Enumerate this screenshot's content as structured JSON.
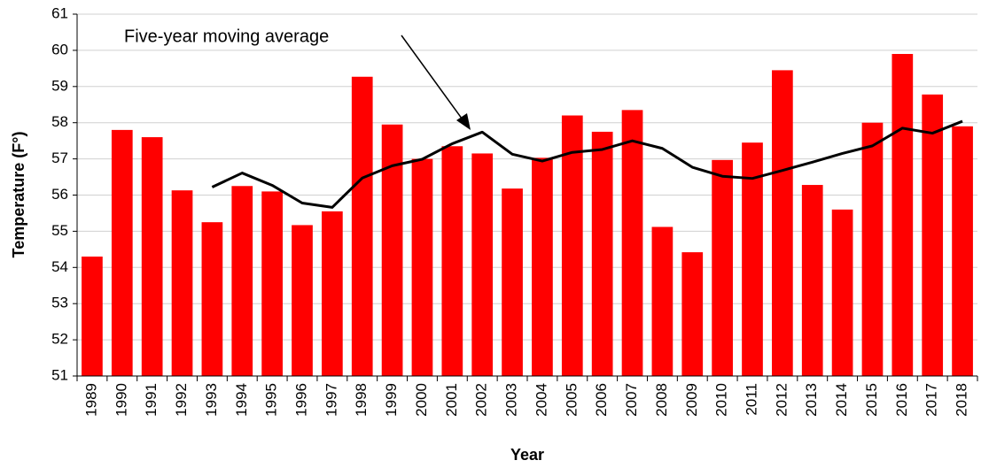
{
  "chart_data": {
    "type": "bar",
    "x_label": "Year",
    "y_label": "Temperature (F°)",
    "categories": [
      "1989",
      "1990",
      "1991",
      "1992",
      "1993",
      "1994",
      "1995",
      "1996",
      "1997",
      "1998",
      "1999",
      "2000",
      "2001",
      "2002",
      "2003",
      "2004",
      "2005",
      "2006",
      "2007",
      "2008",
      "2009",
      "2010",
      "2011",
      "2012",
      "2013",
      "2014",
      "2015",
      "2016",
      "2017",
      "2018"
    ],
    "series": [
      {
        "type": "bar",
        "color": "#ff0000",
        "values": [
          54.3,
          57.8,
          57.6,
          56.13,
          55.25,
          56.25,
          56.1,
          55.17,
          55.55,
          59.27,
          57.95,
          57.0,
          57.35,
          57.15,
          56.18,
          57.03,
          58.2,
          57.75,
          58.35,
          55.12,
          54.42,
          56.97,
          57.45,
          59.45,
          56.28,
          55.6,
          58.0,
          59.9,
          58.78,
          57.9
        ]
      },
      {
        "type": "line",
        "name": "Five-year moving average",
        "color": "#000000",
        "values": [
          null,
          null,
          null,
          null,
          56.22,
          56.61,
          56.27,
          55.78,
          55.66,
          56.47,
          56.81,
          56.99,
          57.42,
          57.74,
          57.13,
          56.94,
          57.18,
          57.26,
          57.5,
          57.29,
          56.77,
          56.52,
          56.46,
          56.68,
          56.91,
          57.15,
          57.36,
          57.85,
          57.71,
          58.04
        ]
      }
    ],
    "ylim": [
      51,
      61
    ],
    "yticks": [
      51,
      52,
      53,
      54,
      55,
      56,
      57,
      58,
      59,
      60,
      61
    ],
    "grid": true
  }
}
